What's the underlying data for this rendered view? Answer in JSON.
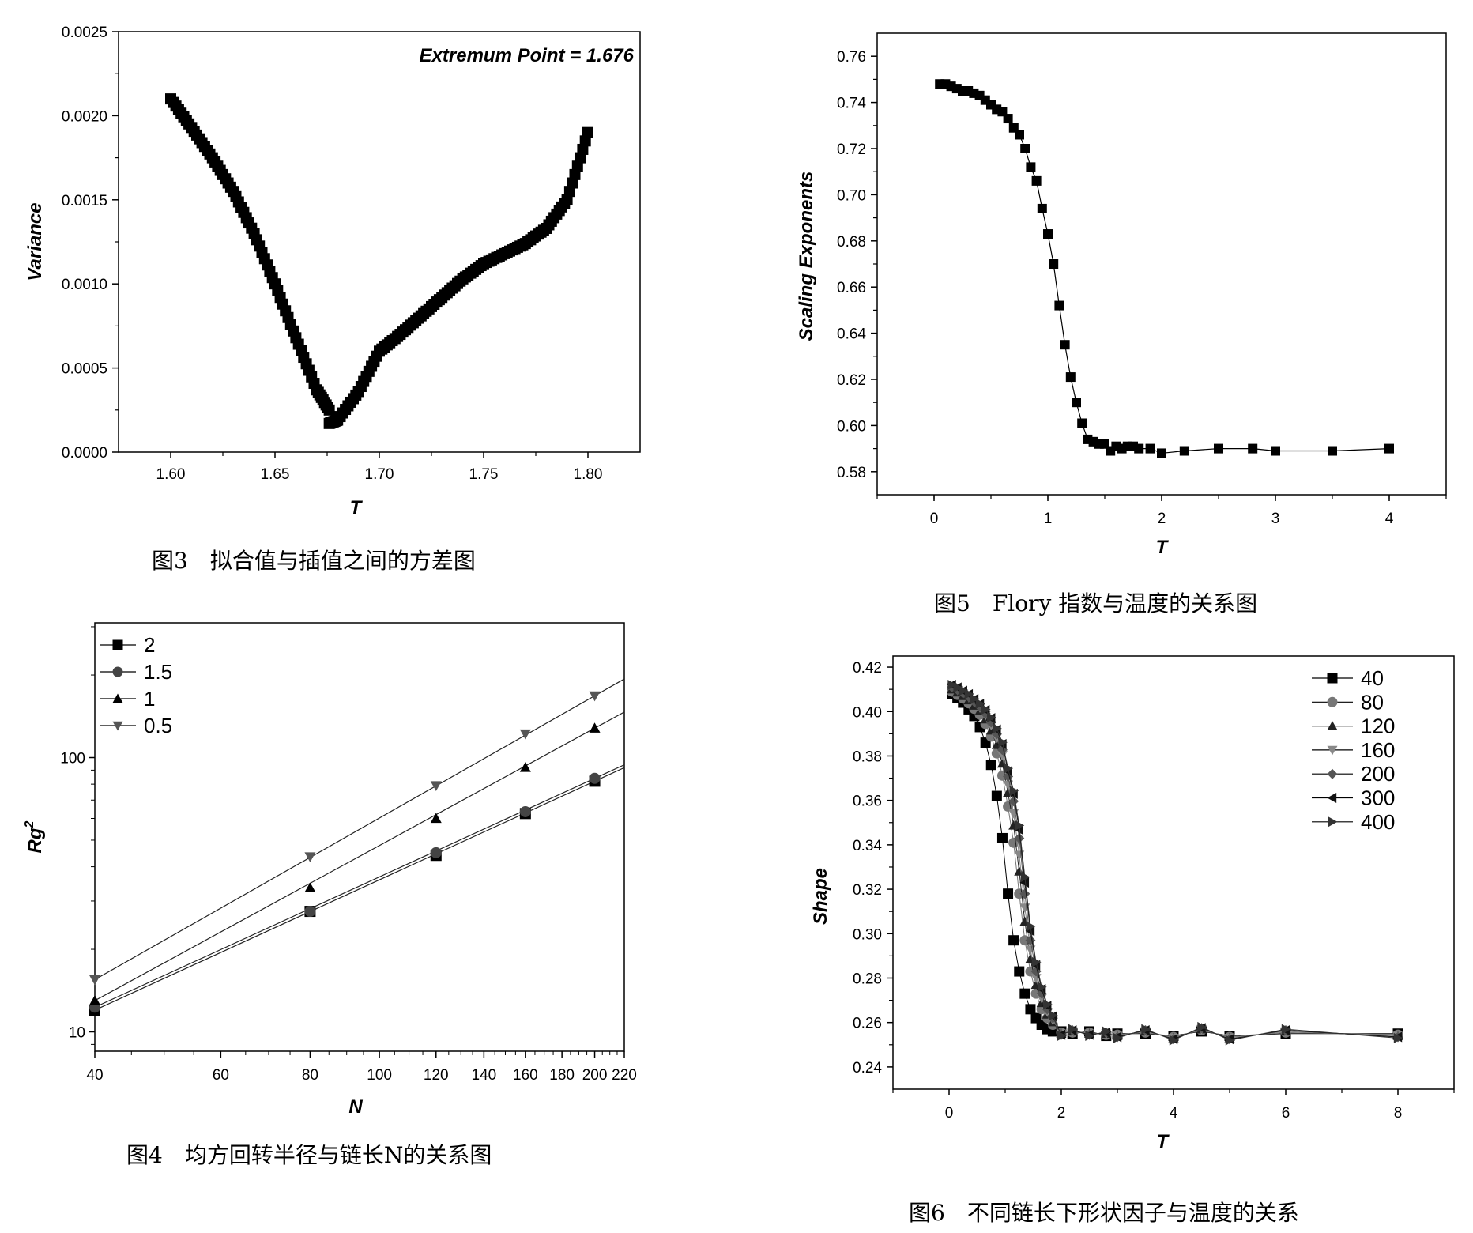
{
  "chart_data": [
    {
      "id": "fig3",
      "type": "scatter",
      "caption": "图3　拟合值与插值之间的方差图",
      "xlabel": "T",
      "ylabel": "Variance",
      "annotation": "Extremum Point  = 1.676",
      "xlim": [
        1.575,
        1.825
      ],
      "ylim": [
        0,
        0.0025
      ],
      "xticks": [
        "1.60",
        "1.65",
        "1.70",
        "1.75",
        "1.80"
      ],
      "xtick_values": [
        1.6,
        1.65,
        1.7,
        1.75,
        1.8
      ],
      "yticks": [
        "0.0000",
        "0.0005",
        "0.0010",
        "0.0015",
        "0.0020",
        "0.0025"
      ],
      "ytick_values": [
        0,
        0.0005,
        0.001,
        0.0015,
        0.002,
        0.0025
      ],
      "series": [
        {
          "marker": "square",
          "x": [
            1.6,
            1.61,
            1.62,
            1.63,
            1.64,
            1.65,
            1.66,
            1.67,
            1.676
          ],
          "y": [
            0.0021,
            0.00193,
            0.00175,
            0.00155,
            0.0013,
            0.001,
            0.00068,
            0.00037,
            0.00025
          ]
        },
        {
          "marker": "square",
          "x": [
            1.676,
            1.68,
            1.69,
            1.7,
            1.71,
            1.72,
            1.73,
            1.74,
            1.75,
            1.76,
            1.77,
            1.78,
            1.79,
            1.8
          ],
          "y": [
            0.00017,
            0.00019,
            0.00036,
            0.0006,
            0.0007,
            0.00081,
            0.00092,
            0.00103,
            0.00112,
            0.00118,
            0.00124,
            0.00133,
            0.0015,
            0.0019
          ]
        }
      ]
    },
    {
      "id": "fig5",
      "type": "line",
      "caption": "图5　Flory 指数与温度的关系图",
      "xlabel": "T",
      "ylabel": "Scaling Exponents",
      "xlim": [
        -0.5,
        4.5
      ],
      "ylim": [
        0.57,
        0.77
      ],
      "xticks": [
        "0",
        "1",
        "2",
        "3",
        "4"
      ],
      "xtick_values": [
        0,
        1,
        2,
        3,
        4
      ],
      "yticks": [
        "0.58",
        "0.60",
        "0.62",
        "0.64",
        "0.66",
        "0.68",
        "0.70",
        "0.72",
        "0.74",
        "0.76"
      ],
      "ytick_values": [
        0.58,
        0.6,
        0.62,
        0.64,
        0.66,
        0.68,
        0.7,
        0.72,
        0.74,
        0.76
      ],
      "series": [
        {
          "marker": "square",
          "x": [
            0.05,
            0.1,
            0.15,
            0.2,
            0.25,
            0.3,
            0.35,
            0.4,
            0.45,
            0.5,
            0.55,
            0.6,
            0.65,
            0.7,
            0.75,
            0.8,
            0.85,
            0.9,
            0.95,
            1.0,
            1.05,
            1.1,
            1.15,
            1.2,
            1.25,
            1.3,
            1.35,
            1.4,
            1.45,
            1.5,
            1.55,
            1.6,
            1.65,
            1.7,
            1.75,
            1.8,
            1.9,
            2.0,
            2.2,
            2.5,
            2.8,
            3.0,
            3.5,
            4.0
          ],
          "y": [
            0.748,
            0.748,
            0.747,
            0.746,
            0.745,
            0.745,
            0.744,
            0.743,
            0.741,
            0.739,
            0.737,
            0.736,
            0.733,
            0.729,
            0.726,
            0.72,
            0.712,
            0.706,
            0.694,
            0.683,
            0.67,
            0.652,
            0.635,
            0.621,
            0.61,
            0.601,
            0.594,
            0.593,
            0.592,
            0.592,
            0.589,
            0.591,
            0.59,
            0.591,
            0.591,
            0.59,
            0.59,
            0.588,
            0.589,
            0.59,
            0.59,
            0.589,
            0.589,
            0.59
          ]
        }
      ]
    },
    {
      "id": "fig4",
      "type": "line",
      "caption": "图4　均方回转半径与链长N的关系图",
      "xlabel": "N",
      "ylabel": "Rg",
      "ylabel_sup": "2",
      "xscale": "log",
      "yscale": "log",
      "xlim": [
        40,
        220
      ],
      "ylim": [
        8.5,
        310
      ],
      "xticks": [
        "40",
        "60",
        "80",
        "100",
        "120",
        "140",
        "160",
        "180",
        "200",
        "220"
      ],
      "xtick_values": [
        40,
        60,
        80,
        100,
        120,
        140,
        160,
        180,
        200,
        220
      ],
      "yticks": [
        "10",
        "100"
      ],
      "ytick_values": [
        10,
        100
      ],
      "legend_position": "top-left",
      "series": [
        {
          "name": "2",
          "marker": "square",
          "x": [
            40,
            80,
            120,
            160,
            200
          ],
          "y": [
            12.0,
            27.5,
            44.0,
            62.5,
            82.0
          ]
        },
        {
          "name": "1.5",
          "marker": "circle",
          "x": [
            40,
            80,
            120,
            160,
            200
          ],
          "y": [
            12.3,
            27.5,
            45.0,
            63.5,
            84.0
          ]
        },
        {
          "name": "1",
          "marker": "triangle-up",
          "x": [
            40,
            80,
            120,
            160,
            200
          ],
          "y": [
            13.0,
            33.5,
            60.0,
            92.0,
            128.0
          ]
        },
        {
          "name": "0.5",
          "marker": "triangle-down",
          "x": [
            40,
            80,
            120,
            160,
            200
          ],
          "y": [
            15.5,
            43.5,
            79.0,
            122.0,
            168.0
          ]
        }
      ]
    },
    {
      "id": "fig6",
      "type": "line",
      "caption": "图6　不同链长下形状因子与温度的关系",
      "xlabel": "T",
      "ylabel": "Shape",
      "xlim": [
        -1,
        9
      ],
      "ylim": [
        0.23,
        0.425
      ],
      "xticks": [
        "0",
        "2",
        "4",
        "6",
        "8"
      ],
      "xtick_values": [
        0,
        2,
        4,
        6,
        8
      ],
      "yticks": [
        "0.24",
        "0.26",
        "0.28",
        "0.30",
        "0.32",
        "0.34",
        "0.36",
        "0.38",
        "0.40",
        "0.42"
      ],
      "ytick_values": [
        0.24,
        0.26,
        0.28,
        0.3,
        0.32,
        0.34,
        0.36,
        0.38,
        0.4,
        0.42
      ],
      "legend_position": "top-right",
      "series": [
        {
          "name": "40",
          "marker": "square",
          "color": "#000000",
          "shift": 0.0,
          "rise": 0.0,
          "jitter": 0.0
        },
        {
          "name": "80",
          "marker": "circle",
          "color": "#777777",
          "shift": 0.2,
          "rise": 0.001,
          "jitter": 0.0005
        },
        {
          "name": "120",
          "marker": "triangle-up",
          "color": "#222222",
          "shift": 0.24,
          "rise": 0.002,
          "jitter": 0.001
        },
        {
          "name": "160",
          "marker": "triangle-down",
          "color": "#888888",
          "shift": 0.27,
          "rise": 0.003,
          "jitter": 0.001
        },
        {
          "name": "200",
          "marker": "diamond",
          "color": "#555555",
          "shift": 0.3,
          "rise": 0.003,
          "jitter": 0.0015
        },
        {
          "name": "300",
          "marker": "triangle-left",
          "color": "#111111",
          "shift": 0.32,
          "rise": 0.004,
          "jitter": 0.0015
        },
        {
          "name": "400",
          "marker": "triangle-right",
          "color": "#333333",
          "shift": 0.33,
          "rise": 0.004,
          "jitter": 0.002
        }
      ],
      "base_x": [
        0.05,
        0.15,
        0.25,
        0.35,
        0.45,
        0.55,
        0.65,
        0.75,
        0.85,
        0.95,
        1.05,
        1.15,
        1.25,
        1.35,
        1.45,
        1.55,
        1.65,
        1.75,
        1.85,
        2.0,
        2.2,
        2.5,
        2.8,
        3.0,
        3.5,
        4.0,
        4.5,
        5.0,
        6.0,
        8.0
      ],
      "base_y": [
        0.408,
        0.406,
        0.404,
        0.401,
        0.398,
        0.393,
        0.386,
        0.376,
        0.362,
        0.343,
        0.318,
        0.297,
        0.283,
        0.273,
        0.266,
        0.262,
        0.259,
        0.257,
        0.256,
        0.256,
        0.255,
        0.256,
        0.254,
        0.255,
        0.255,
        0.254,
        0.256,
        0.254,
        0.255,
        0.255
      ]
    }
  ]
}
